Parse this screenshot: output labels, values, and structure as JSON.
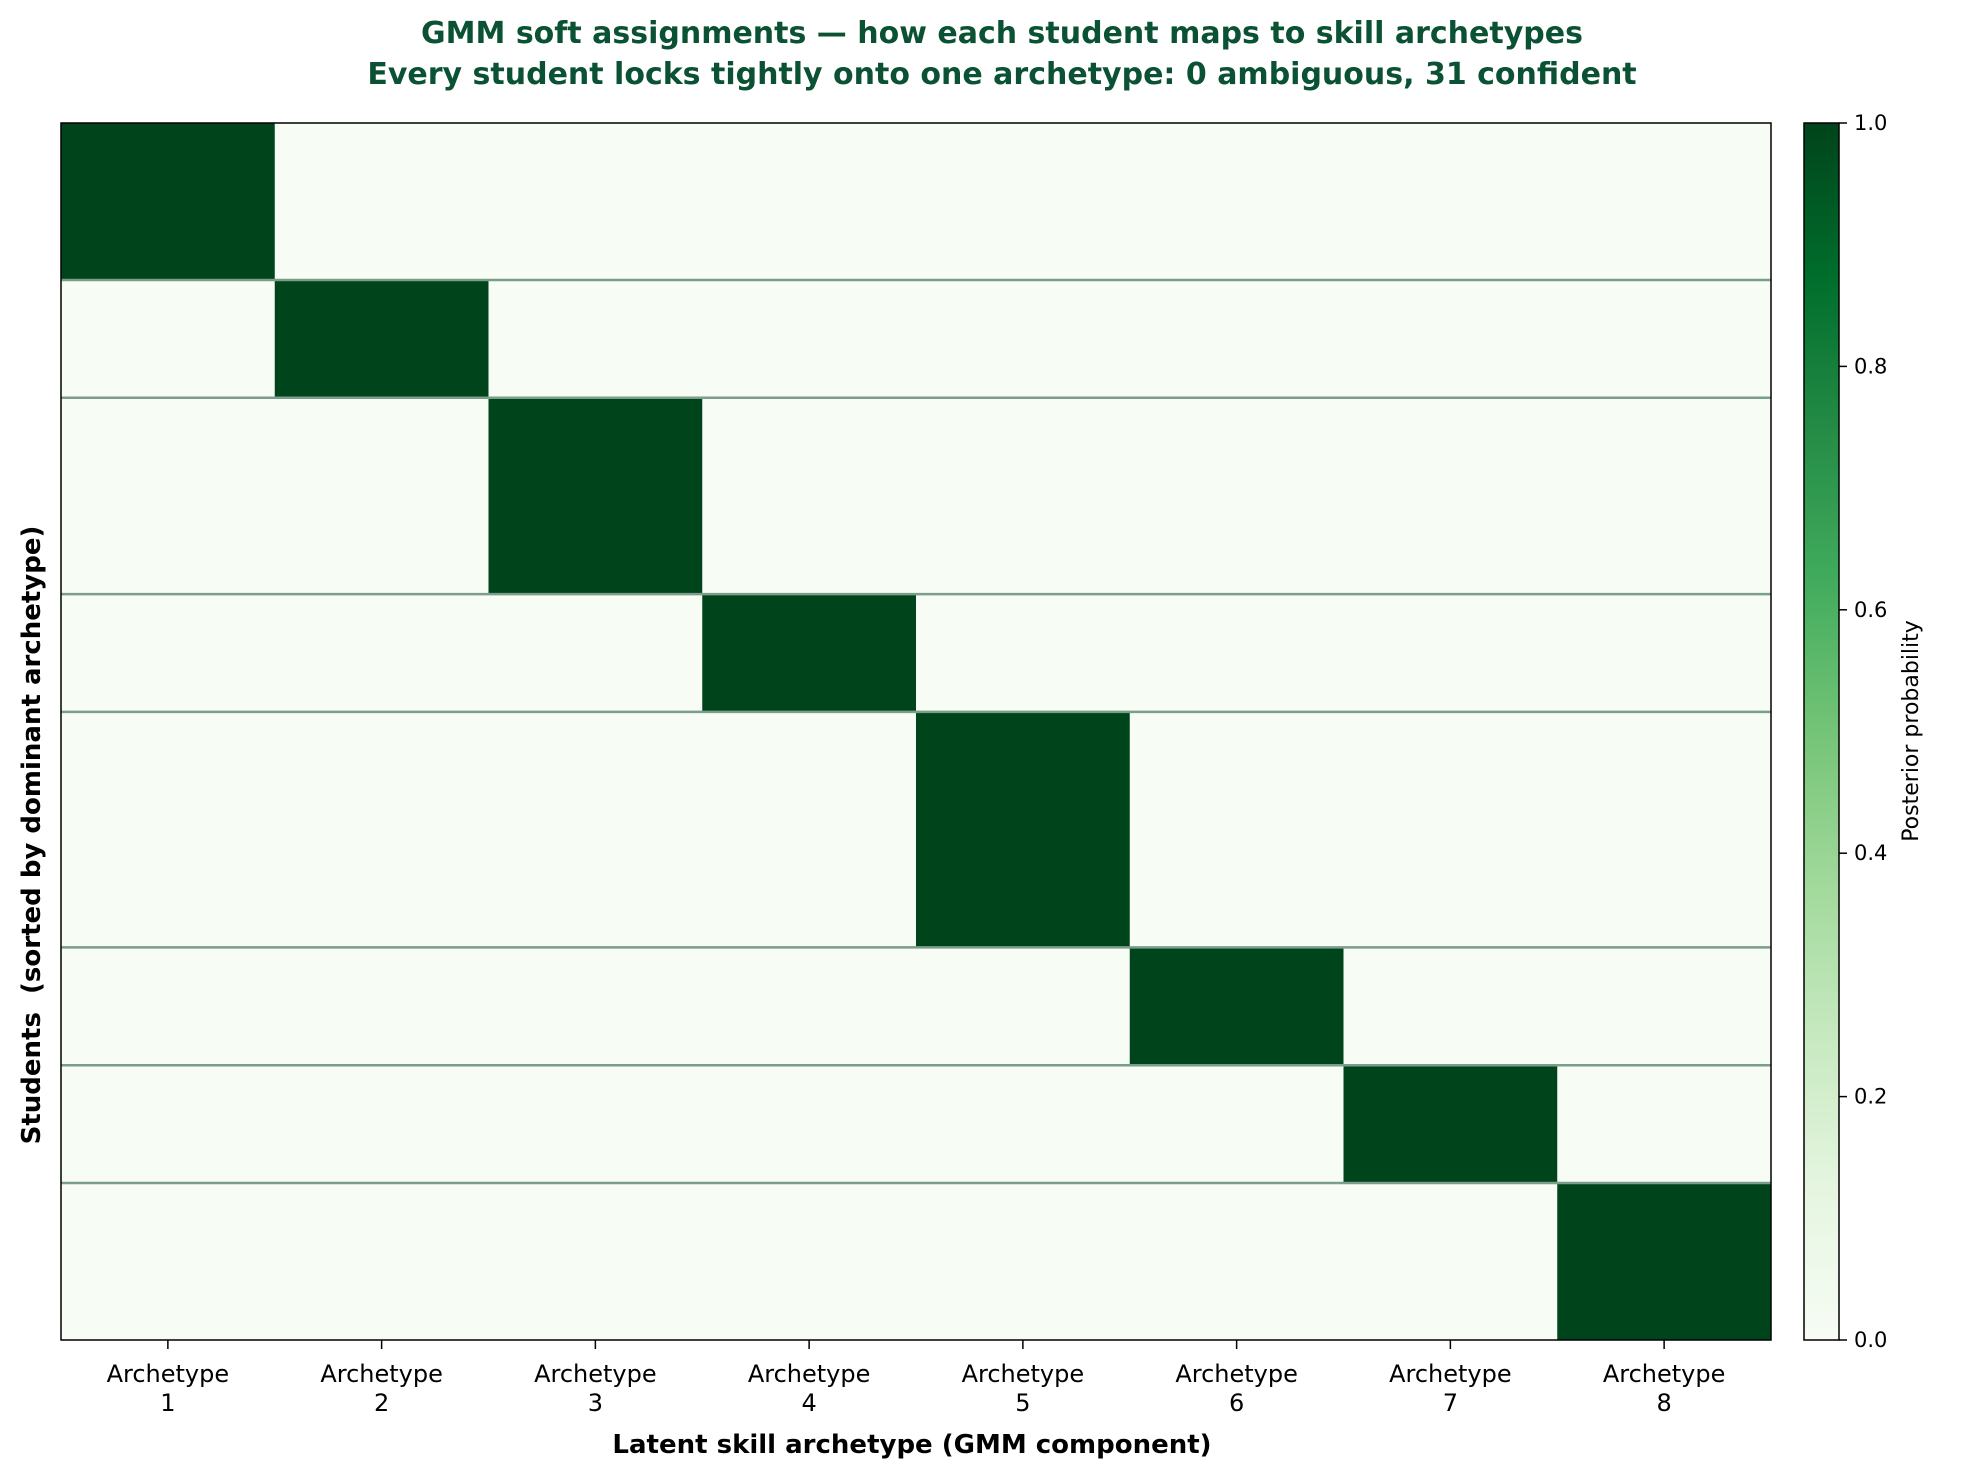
{
  "chart_data": {
    "type": "heatmap",
    "title": "GMM soft assignments — how each student maps to skill archetypes",
    "subtitle": "Every student locks tightly onto one archetype: 0 ambiguous, 31 confident",
    "xlabel": "Latent skill archetype (GMM component)",
    "ylabel": "Students  (sorted by dominant archetype)",
    "categories": [
      [
        "Archetype",
        "1"
      ],
      [
        "Archetype",
        "2"
      ],
      [
        "Archetype",
        "3"
      ],
      [
        "Archetype",
        "4"
      ],
      [
        "Archetype",
        "5"
      ],
      [
        "Archetype",
        "6"
      ],
      [
        "Archetype",
        "7"
      ],
      [
        "Archetype",
        "8"
      ]
    ],
    "n_students": 31,
    "students_per_archetype": [
      4,
      3,
      5,
      3,
      6,
      3,
      3,
      4
    ],
    "dominant_probability": 1.0,
    "other_probability": 0.0,
    "group_separators": true,
    "colorbar": {
      "label": "Posterior probability",
      "range": [
        0,
        1
      ],
      "ticks": [
        "0.0",
        "0.2",
        "0.4",
        "0.6",
        "0.8",
        "1.0"
      ],
      "colormap": "Greens"
    },
    "colors": {
      "high": "#00441b",
      "low": "#f7fcf5",
      "separator": "#7a9e8a",
      "title": "#0b5133"
    }
  }
}
